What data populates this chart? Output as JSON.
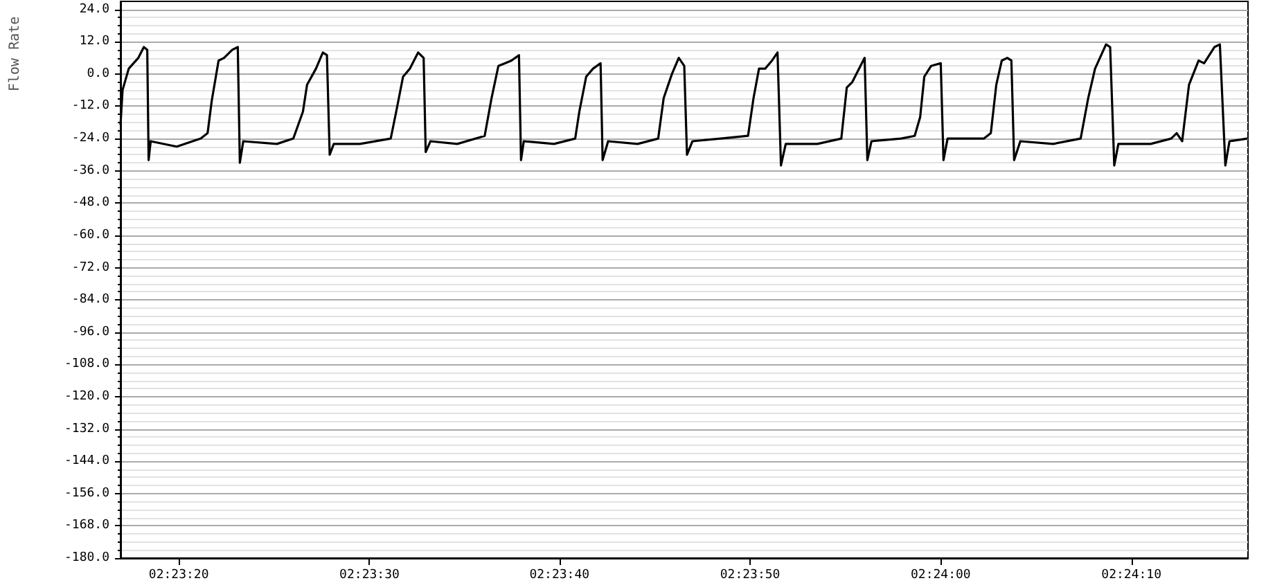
{
  "chart_data": {
    "type": "line",
    "ylabel": "Flow Rate",
    "grid": "y",
    "marker": "none",
    "line_style": "solid",
    "xlim": [
      2.38804,
      2.40448
    ],
    "xticks": [
      {
        "value": 2.38889,
        "label": "02:23:20"
      },
      {
        "value": 2.39167,
        "label": "02:23:30"
      },
      {
        "value": 2.39444,
        "label": "02:23:40"
      },
      {
        "value": 2.39722,
        "label": "02:23:50"
      },
      {
        "value": 2.4,
        "label": "02:24:00"
      },
      {
        "value": 2.40278,
        "label": "02:24:10"
      }
    ],
    "ylim": [
      -180,
      27
    ],
    "yticks": [
      {
        "value": 24,
        "label": "24.0"
      },
      {
        "value": 12,
        "label": "12.0"
      },
      {
        "value": 0,
        "label": "0.0"
      },
      {
        "value": -12,
        "label": "-12.0"
      },
      {
        "value": -24,
        "label": "-24.0"
      },
      {
        "value": -36,
        "label": "-36.0"
      },
      {
        "value": -48,
        "label": "-48.0"
      },
      {
        "value": -60,
        "label": "-60.0"
      },
      {
        "value": -72,
        "label": "-72.0"
      },
      {
        "value": -84,
        "label": "-84.0"
      },
      {
        "value": -96,
        "label": "-96.0"
      },
      {
        "value": -108,
        "label": "-108.0"
      },
      {
        "value": -120,
        "label": "-120.0"
      },
      {
        "value": -132,
        "label": "-132.0"
      },
      {
        "value": -144,
        "label": "-144.0"
      },
      {
        "value": -156,
        "label": "-156.0"
      },
      {
        "value": -168,
        "label": "-168.0"
      },
      {
        "value": -180,
        "label": "-180.0"
      }
    ],
    "series": [
      {
        "color": "#000000",
        "x": [
          2.38804,
          2.38807,
          2.38816,
          2.3883,
          2.38838,
          2.38843,
          2.38845,
          2.38848,
          2.38886,
          2.38921,
          2.38931,
          2.38937,
          2.38947,
          2.38955,
          2.38967,
          2.38975,
          2.38978,
          2.38983,
          2.39032,
          2.39056,
          2.3907,
          2.39076,
          2.39089,
          2.39099,
          2.39105,
          2.39109,
          2.39115,
          2.39153,
          2.39198,
          2.39206,
          2.39216,
          2.39226,
          2.39238,
          2.39246,
          2.39249,
          2.39256,
          2.39295,
          2.39335,
          2.39345,
          2.39355,
          2.39365,
          2.39374,
          2.39385,
          2.39388,
          2.39392,
          2.39436,
          2.39467,
          2.39473,
          2.39483,
          2.39493,
          2.39504,
          2.39507,
          2.39515,
          2.39558,
          2.39588,
          2.39596,
          2.39608,
          2.39618,
          2.39626,
          2.3963,
          2.39638,
          2.39679,
          2.39719,
          2.39727,
          2.39735,
          2.39744,
          2.39754,
          2.39762,
          2.39767,
          2.39774,
          2.3982,
          2.39855,
          2.39863,
          2.39871,
          2.39881,
          2.39889,
          2.39893,
          2.39899,
          2.39942,
          2.39962,
          2.3997,
          2.39976,
          2.39986,
          2.4,
          2.40004,
          2.4001,
          2.40063,
          2.40073,
          2.40081,
          2.40089,
          2.40097,
          2.40103,
          2.40107,
          2.40116,
          2.40164,
          2.40204,
          2.40215,
          2.40225,
          2.40241,
          2.40247,
          2.40253,
          2.40259,
          2.40306,
          2.40336,
          2.40344,
          2.40352,
          2.40362,
          2.40376,
          2.40384,
          2.40399,
          2.40407,
          2.40415,
          2.40421,
          2.40447
        ],
        "values": [
          -19,
          -6,
          2,
          6,
          10,
          9,
          -32,
          -25,
          -27,
          -24,
          -22,
          -10,
          5,
          6,
          9,
          10,
          -33,
          -25,
          -26,
          -24,
          -14,
          -4,
          2,
          8,
          7,
          -30,
          -26,
          -26,
          -24,
          -14,
          -1,
          2,
          8,
          6,
          -29,
          -25,
          -26,
          -23,
          -9,
          3,
          4,
          5,
          7,
          -32,
          -25,
          -26,
          -24,
          -14,
          -1,
          2,
          4,
          -32,
          -25,
          -26,
          -24,
          -9,
          0,
          6,
          3,
          -30,
          -25,
          -24,
          -23,
          -9,
          2,
          2,
          5,
          8,
          -34,
          -26,
          -26,
          -24,
          -5,
          -3,
          2,
          6,
          -32,
          -25,
          -24,
          -23,
          -16,
          -1,
          3,
          4,
          -32,
          -24,
          -24,
          -22,
          -4,
          5,
          6,
          5,
          -32,
          -25,
          -26,
          -24,
          -9,
          2,
          11,
          10,
          -34,
          -26,
          -26,
          -24,
          -22,
          -25,
          -4,
          5,
          4,
          10,
          11,
          -34,
          -25,
          -24
        ]
      }
    ]
  }
}
